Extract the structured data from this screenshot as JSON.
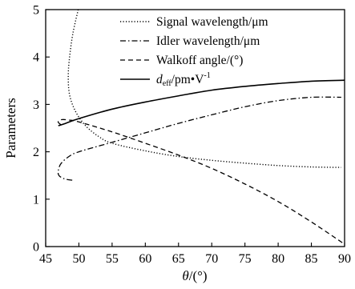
{
  "chart_data": {
    "type": "line",
    "xlabel": {
      "main": "θ",
      "suffix": "/(°)"
    },
    "ylabel": "Parameters",
    "xlim": [
      45,
      90
    ],
    "ylim": [
      0,
      5
    ],
    "xticks": [
      45,
      50,
      55,
      60,
      65,
      70,
      75,
      80,
      85,
      90
    ],
    "yticks": [
      0,
      1,
      2,
      3,
      4,
      5
    ],
    "grid": false,
    "legend_position": "top-right",
    "series": [
      {
        "name": "Signal wavelength/μm",
        "legend_parts": {
          "main": "Signal wavelength/μm"
        },
        "style": "dotted",
        "points": [
          [
            49.9,
            5.0
          ],
          [
            49.1,
            4.5
          ],
          [
            48.6,
            4.0
          ],
          [
            48.4,
            3.6
          ],
          [
            48.6,
            3.2
          ],
          [
            49.5,
            2.85
          ],
          [
            51.0,
            2.55
          ],
          [
            53.0,
            2.32
          ],
          [
            55.0,
            2.18
          ],
          [
            60.0,
            2.02
          ],
          [
            65.0,
            1.9
          ],
          [
            70.0,
            1.82
          ],
          [
            75.0,
            1.76
          ],
          [
            80.0,
            1.71
          ],
          [
            85.0,
            1.68
          ],
          [
            89.5,
            1.67
          ]
        ]
      },
      {
        "name": "Idler wavelength/μm",
        "legend_parts": {
          "main": "Idler wavelength/μm"
        },
        "style": "dashdot",
        "points": [
          [
            49.0,
            1.4
          ],
          [
            47.8,
            1.43
          ],
          [
            47.0,
            1.5
          ],
          [
            46.9,
            1.6
          ],
          [
            47.3,
            1.75
          ],
          [
            48.5,
            1.9
          ],
          [
            50.0,
            2.0
          ],
          [
            55.0,
            2.2
          ],
          [
            60.0,
            2.4
          ],
          [
            65.0,
            2.6
          ],
          [
            70.0,
            2.78
          ],
          [
            75.0,
            2.95
          ],
          [
            80.0,
            3.08
          ],
          [
            85.0,
            3.15
          ],
          [
            89.5,
            3.15
          ]
        ]
      },
      {
        "name": "Walkoff angle/(°)",
        "legend_parts": {
          "main": "Walkoff angle/(°)"
        },
        "style": "dashed",
        "points": [
          [
            47.3,
            2.57
          ],
          [
            46.9,
            2.62
          ],
          [
            47.0,
            2.66
          ],
          [
            47.5,
            2.68
          ],
          [
            48.5,
            2.67
          ],
          [
            50.0,
            2.63
          ],
          [
            55.0,
            2.42
          ],
          [
            60.0,
            2.18
          ],
          [
            65.0,
            1.93
          ],
          [
            70.0,
            1.65
          ],
          [
            75.0,
            1.32
          ],
          [
            80.0,
            0.95
          ],
          [
            85.0,
            0.52
          ],
          [
            90.0,
            0.05
          ]
        ]
      },
      {
        "name": "d_eff/pm•V⁻¹",
        "legend_parts": {
          "main": "d",
          "sub": "eff",
          "mid": "/pm•V",
          "sup": "-1"
        },
        "style": "solid",
        "points": [
          [
            46.9,
            2.55
          ],
          [
            48.0,
            2.6
          ],
          [
            50.0,
            2.7
          ],
          [
            55.0,
            2.9
          ],
          [
            60.0,
            3.05
          ],
          [
            65.0,
            3.18
          ],
          [
            70.0,
            3.3
          ],
          [
            75.0,
            3.38
          ],
          [
            80.0,
            3.44
          ],
          [
            85.0,
            3.49
          ],
          [
            90.0,
            3.51
          ]
        ]
      }
    ]
  }
}
